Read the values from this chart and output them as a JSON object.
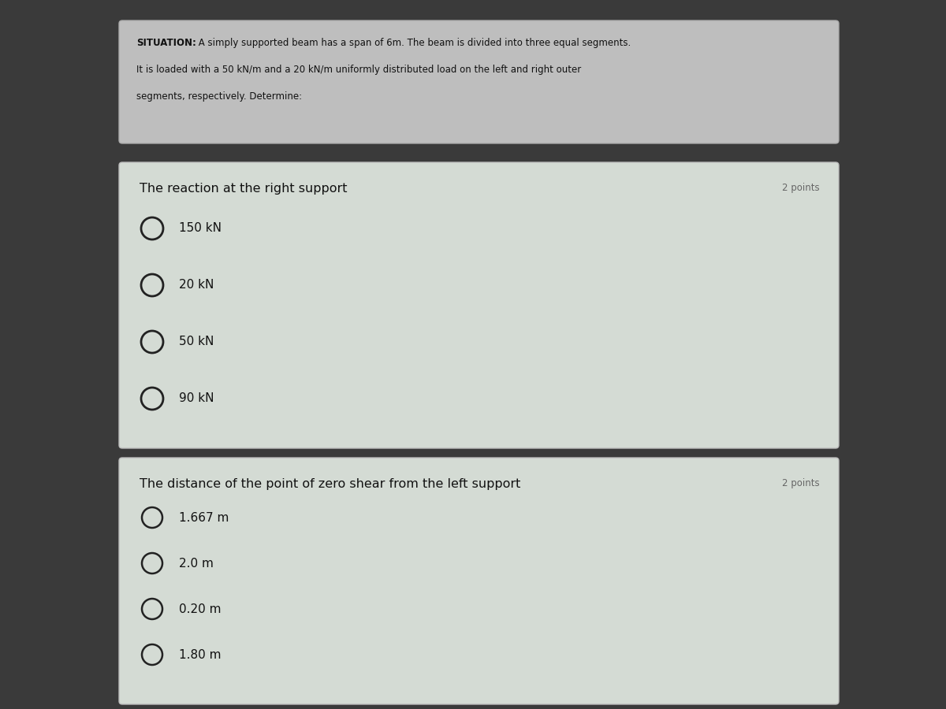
{
  "bg_color": "#3a3a3a",
  "situation_box_color": "#bebebe",
  "situation_box_edge": "#aaaaaa",
  "situation_line1_bold": "SITUATION:",
  "situation_line1_rest": " A simply supported beam has a span of 6m. The beam is divided into three equal segments.",
  "situation_line2": "It is loaded with a 50 kN/m and a 20 kN/m uniformly distributed load on the left and right outer",
  "situation_line3": "segments, respectively. Determine:",
  "question_box_color": "#d4dbd4",
  "question_box_edge": "#bbbbbb",
  "q1_question": "The reaction at the right support",
  "q1_points": "2 points",
  "q1_options": [
    "150 kN",
    "20 kN",
    "50 kN",
    "90 kN"
  ],
  "q2_question": "The distance of the point of zero shear from the left support",
  "q2_points": "2 points",
  "q2_options": [
    "1.667 m",
    "2.0 m",
    "0.20 m",
    "1.80 m"
  ],
  "option_circle_color": "#222222",
  "option_text_color": "#111111",
  "question_text_color": "#111111",
  "points_text_color": "#666666",
  "situation_text_color": "#111111",
  "sit_font_size": 8.5,
  "q_title_font_size": 11.5,
  "q_opt_font_size": 11.0,
  "points_font_size": 8.5
}
